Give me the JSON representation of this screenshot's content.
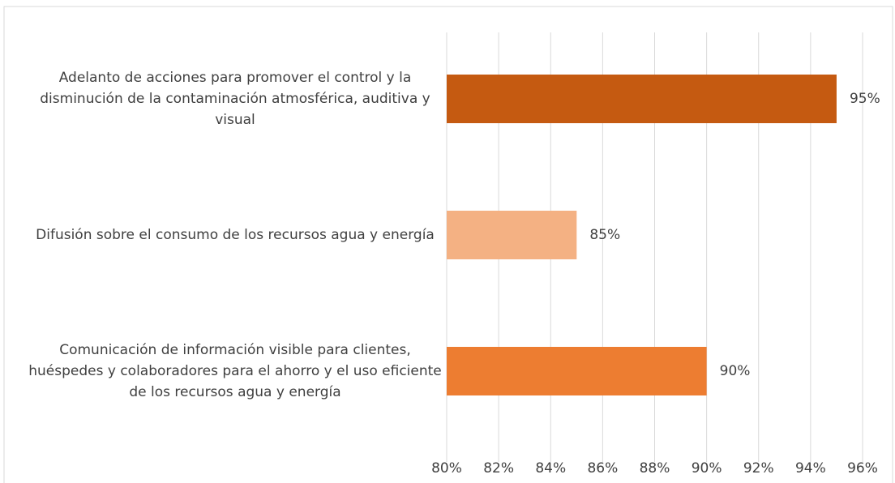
{
  "chart_data": {
    "type": "bar",
    "orientation": "horizontal",
    "categories": [
      "Adelanto de acciones para promover el control y la disminución de la contaminación atmosférica, auditiva y visual",
      "Difusión sobre el consumo de los recursos agua y energía",
      "Comunicación de información visible para clientes, huéspedes y colaboradores para el ahorro y el uso eficiente de los recursos agua y energía"
    ],
    "values": [
      95,
      85,
      90
    ],
    "value_labels": [
      "95%",
      "85%",
      "90%"
    ],
    "colors": [
      "#c55a11",
      "#f4b183",
      "#ed7d31"
    ],
    "xlim": [
      80,
      96
    ],
    "xticks": [
      {
        "value": 80,
        "label": "80%"
      },
      {
        "value": 82,
        "label": "82%"
      },
      {
        "value": 84,
        "label": "84%"
      },
      {
        "value": 86,
        "label": "86%"
      },
      {
        "value": 88,
        "label": "88%"
      },
      {
        "value": 90,
        "label": "90%"
      },
      {
        "value": 92,
        "label": "92%"
      },
      {
        "value": 94,
        "label": "94%"
      },
      {
        "value": 96,
        "label": "96%"
      }
    ],
    "grid": true
  }
}
